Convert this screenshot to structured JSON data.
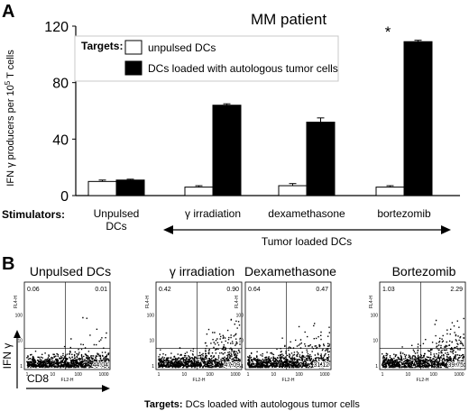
{
  "panel_a": {
    "letter": "A",
    "title": "MM patient",
    "ylabel_main": "IFN γ producers per 10",
    "ylabel_sup": "5",
    "ylabel_end": " T cells",
    "yticks": [
      "0",
      "40",
      "80",
      "120"
    ],
    "legend_heading": "Targets:",
    "stimulators_label": "Stimulators:",
    "group_arrow_label": "Tumor loaded DCs",
    "significance_marker": "*"
  },
  "panel_b": {
    "letter": "B",
    "titles": [
      "Unpulsed DCs",
      "γ irradiation",
      "Dexamethasone",
      "Bortezomib"
    ],
    "quadrants": [
      {
        "ul": "0.06",
        "ur": "0.01",
        "lr": "44.04"
      },
      {
        "ul": "0.42",
        "ur": "0.90",
        "lr": "47.09"
      },
      {
        "ul": "0.64",
        "ur": "0.47",
        "lr": "31.12"
      },
      {
        "ul": "1.03",
        "ur": "2.29",
        "lr": "39.75"
      }
    ],
    "x_ticks": [
      "1",
      "10",
      "100",
      "1000"
    ],
    "y_ticks": [
      "1",
      "10",
      "100"
    ],
    "axis_x_small": "FL2-H",
    "axis_y_small": "FL4-H",
    "y_axis_label": "IFN γ",
    "x_axis_label": "CD8",
    "targets_prefix": "Targets:",
    "targets_text": " DCs loaded with autologous tumor cells"
  },
  "chart_data": {
    "type": "bar",
    "title": "MM patient",
    "xlabel": "Stimulators:",
    "ylabel": "IFN γ producers per 10^5 T cells",
    "ylim": [
      0,
      120
    ],
    "yticks": [
      0,
      40,
      80,
      120
    ],
    "categories": [
      "Unpulsed DCs",
      "γ irradiation",
      "dexamethasone",
      "bortezomib"
    ],
    "category_lines": [
      [
        "Unpulsed",
        "DCs"
      ],
      [
        "γ irradiation"
      ],
      [
        "dexamethasone"
      ],
      [
        "bortezomib"
      ]
    ],
    "series": [
      {
        "name": "unpulsed DCs",
        "values": [
          10,
          6,
          7,
          6
        ],
        "errors": [
          1,
          1,
          1.5,
          1
        ],
        "color": "#ffffff"
      },
      {
        "name": "DCs loaded with autologous tumor cells",
        "values": [
          11,
          64,
          52,
          109
        ],
        "errors": [
          0.6,
          1,
          3,
          1
        ],
        "color": "#000000"
      }
    ],
    "legend_placement": "top-left",
    "grid": false
  }
}
